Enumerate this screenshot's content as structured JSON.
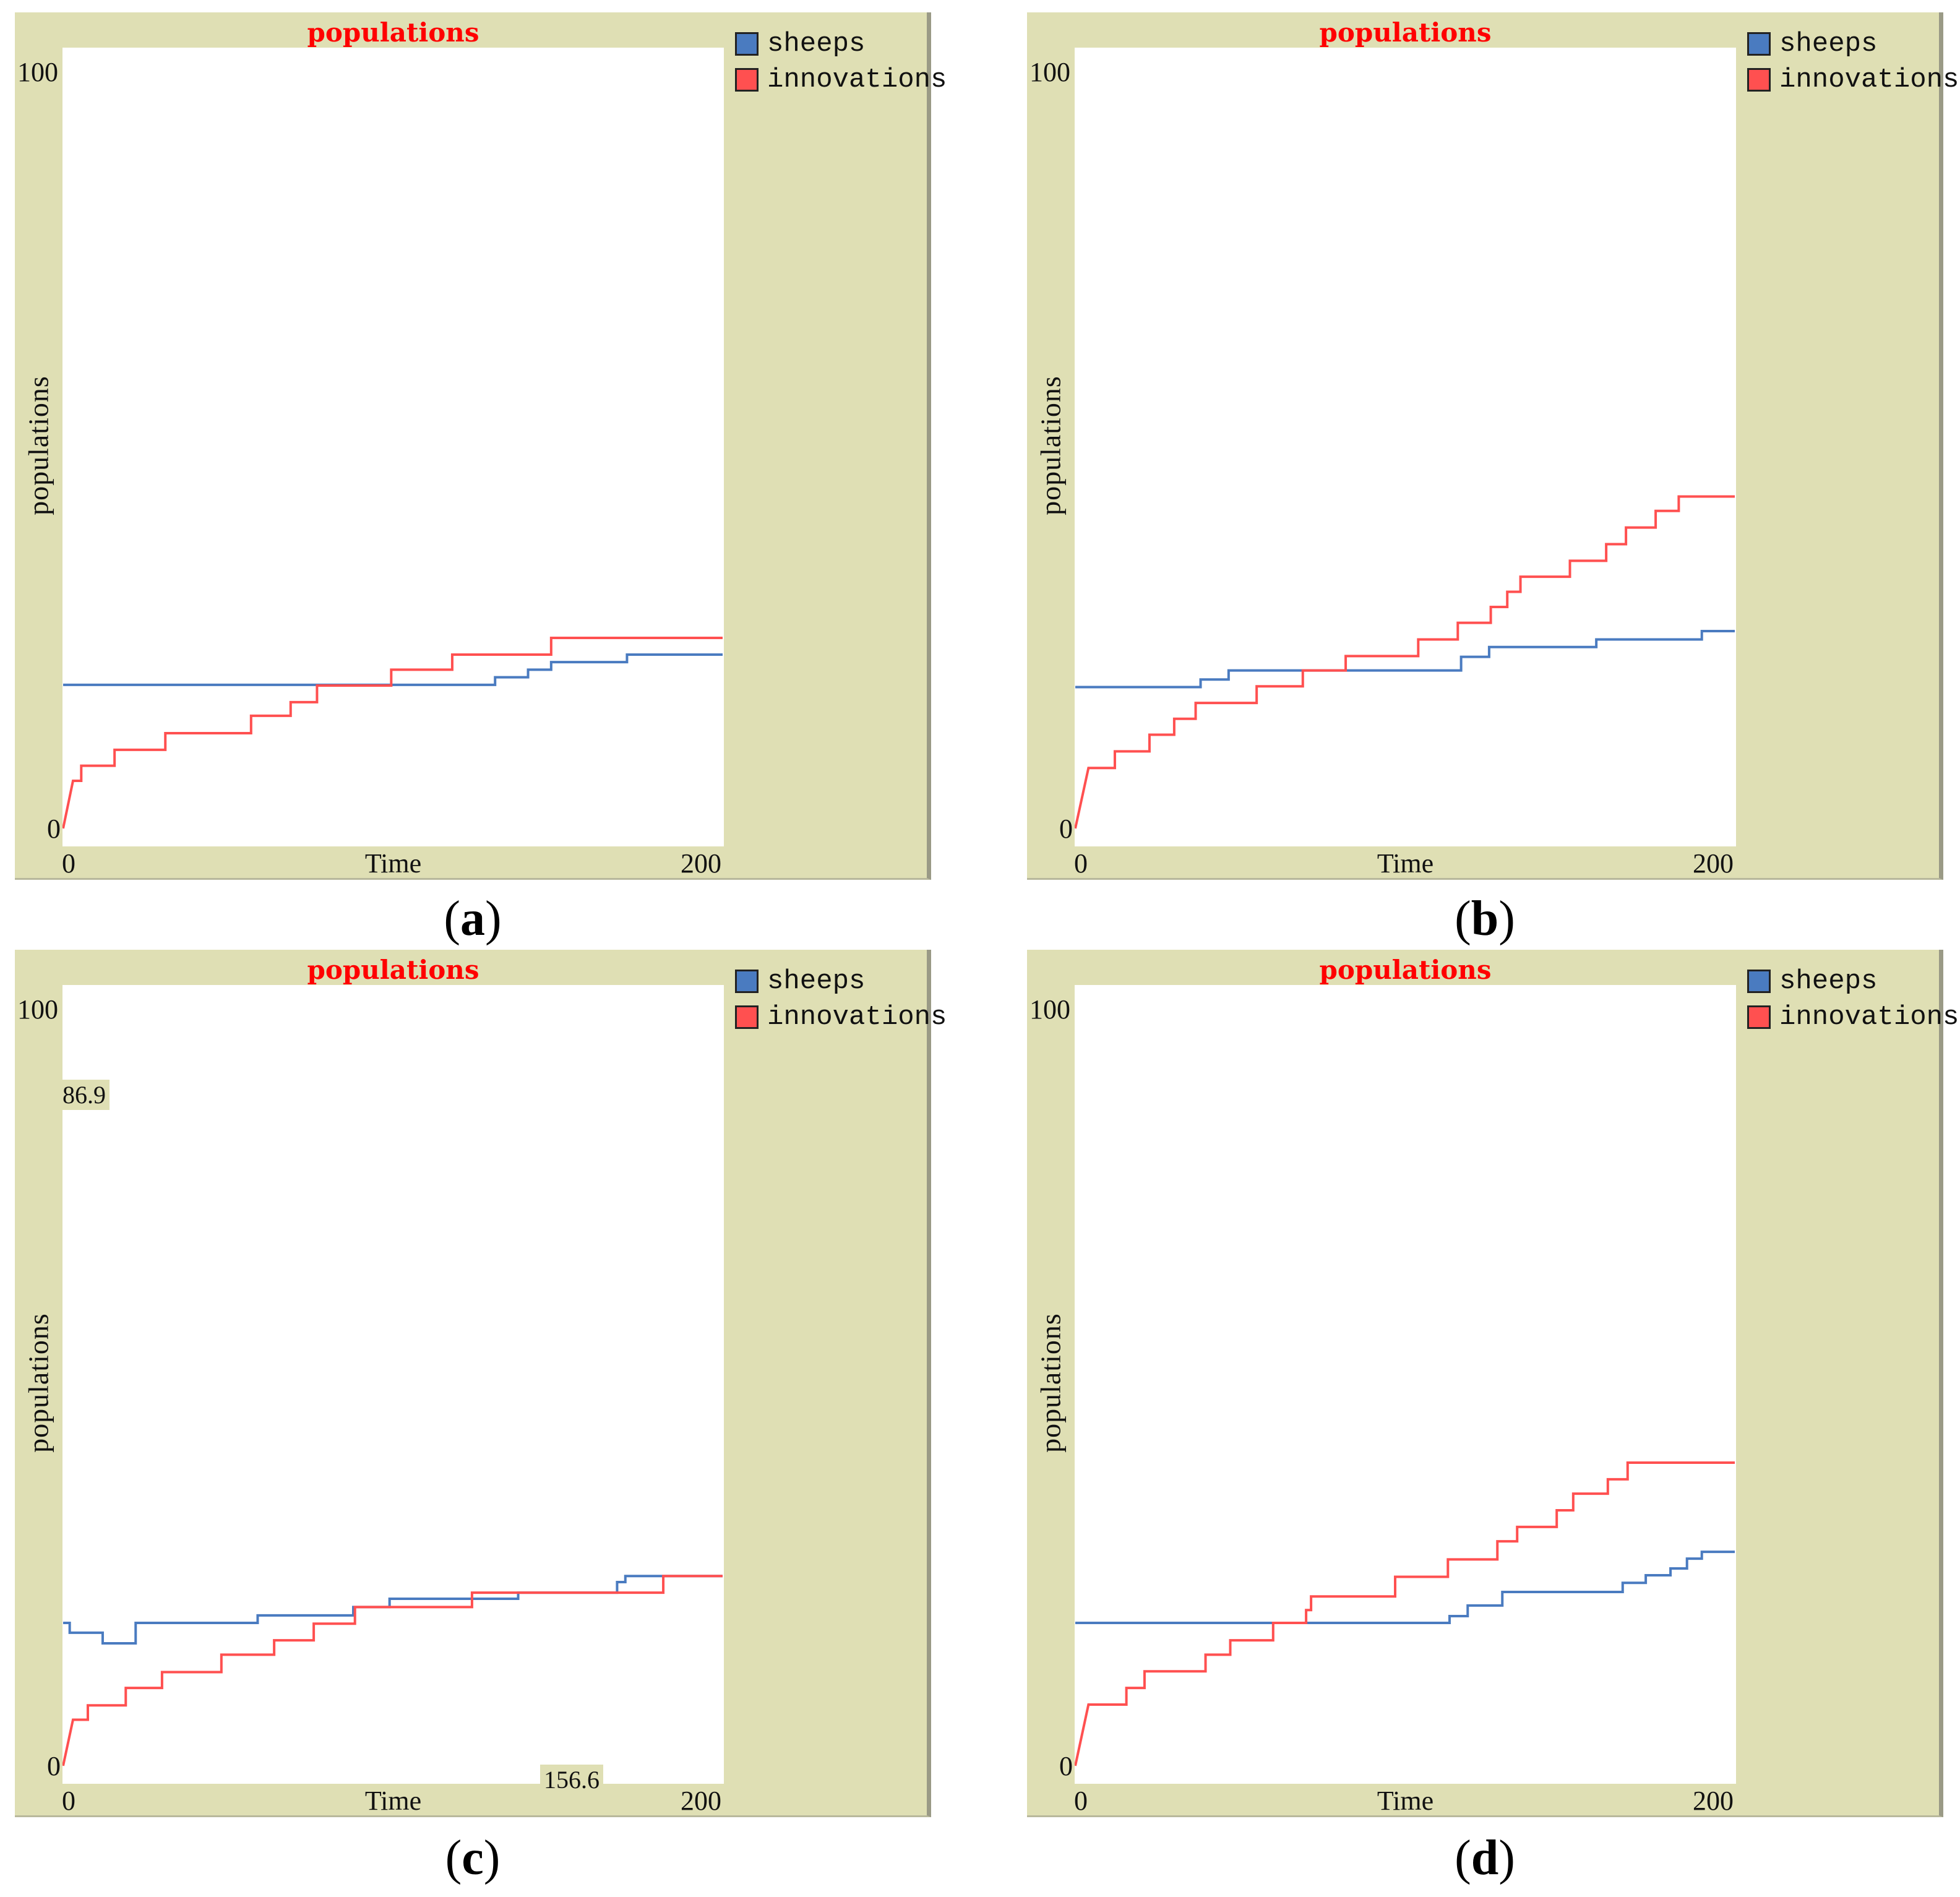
{
  "colors": {
    "background": "#dfdfb4",
    "sheeps": "#4a7bc0",
    "innovations": "#ff5050",
    "title": "#ff0000"
  },
  "chart_data": [
    {
      "type": "line",
      "caption": "a",
      "title": "populations",
      "xlabel": "Time",
      "ylabel": "populations",
      "xlim": [
        0,
        200
      ],
      "ylim": [
        0,
        100
      ],
      "xticks": [
        "0",
        "200"
      ],
      "yticks": [
        "0",
        "100"
      ],
      "legend": "top-right",
      "annotations": [],
      "series": [
        {
          "name": "sheeps",
          "points": [
            [
              0,
              19
            ],
            [
              131,
              20
            ],
            [
              141,
              21
            ],
            [
              148,
              22
            ],
            [
              171,
              23
            ],
            [
              200,
              23
            ]
          ]
        },
        {
          "name": "innovations",
          "points": [
            [
              0,
              0
            ],
            [
              3,
              6.3
            ],
            [
              5.5,
              8.3
            ],
            [
              15.6,
              10.4
            ],
            [
              31,
              12.6
            ],
            [
              57,
              14.9
            ],
            [
              69,
              16.7
            ],
            [
              77,
              18.9
            ],
            [
              99.5,
              21
            ],
            [
              118,
              23
            ],
            [
              148,
              25.2
            ],
            [
              200,
              25.2
            ]
          ]
        }
      ]
    },
    {
      "type": "line",
      "caption": "b",
      "title": "populations",
      "xlabel": "Time",
      "ylabel": "populations",
      "xlim": [
        0,
        200
      ],
      "ylim": [
        0,
        100
      ],
      "xticks": [
        "0",
        "200"
      ],
      "yticks": [
        "0",
        "100"
      ],
      "legend": "top-right",
      "annotations": [],
      "series": [
        {
          "name": "sheeps",
          "points": [
            [
              0,
              18.7
            ],
            [
              38,
              19.7
            ],
            [
              46.5,
              20.9
            ],
            [
              117,
              22.7
            ],
            [
              125.5,
              24
            ],
            [
              158,
              25
            ],
            [
              190,
              26.1
            ],
            [
              200,
              26.1
            ]
          ]
        },
        {
          "name": "innovations",
          "points": [
            [
              0,
              0
            ],
            [
              4,
              8
            ],
            [
              12,
              10.2
            ],
            [
              22.5,
              12.4
            ],
            [
              30,
              14.5
            ],
            [
              36.5,
              16.6
            ],
            [
              55,
              18.8
            ],
            [
              69,
              20.9
            ],
            [
              82,
              22.8
            ],
            [
              104,
              25
            ],
            [
              116,
              27.2
            ],
            [
              126,
              29.3
            ],
            [
              131,
              31.3
            ],
            [
              135,
              33.3
            ],
            [
              150,
              35.4
            ],
            [
              161,
              37.6
            ],
            [
              167,
              39.8
            ],
            [
              176,
              42
            ],
            [
              183,
              43.9
            ],
            [
              200,
              43.9
            ]
          ]
        }
      ]
    },
    {
      "type": "line",
      "caption": "c",
      "title": "populations",
      "xlabel": "Time",
      "ylabel": "populations",
      "xlim": [
        0,
        200
      ],
      "ylim": [
        0,
        100
      ],
      "xticks": [
        "0",
        "200"
      ],
      "yticks": [
        "0",
        "100"
      ],
      "legend": "top-right",
      "annotations": [
        "86.9",
        "156.6"
      ],
      "series": [
        {
          "name": "sheeps",
          "points": [
            [
              0,
              18.9
            ],
            [
              2,
              17.6
            ],
            [
              12,
              16.2
            ],
            [
              22,
              18.9
            ],
            [
              59,
              19.9
            ],
            [
              88,
              21
            ],
            [
              99,
              22.1
            ],
            [
              138,
              22.9
            ],
            [
              168,
              24.3
            ],
            [
              170.5,
              25.1
            ],
            [
              200,
              25.1
            ]
          ]
        },
        {
          "name": "innovations",
          "points": [
            [
              0,
              0
            ],
            [
              3,
              6.1
            ],
            [
              7.5,
              8
            ],
            [
              19,
              10.3
            ],
            [
              30,
              12.4
            ],
            [
              48,
              14.7
            ],
            [
              64,
              16.6
            ],
            [
              76,
              18.8
            ],
            [
              88.5,
              21
            ],
            [
              124,
              22.9
            ],
            [
              182,
              25.1
            ],
            [
              200,
              25.1
            ]
          ]
        }
      ]
    },
    {
      "type": "line",
      "caption": "d",
      "title": "populations",
      "xlabel": "Time",
      "ylabel": "populations",
      "xlim": [
        0,
        200
      ],
      "ylim": [
        0,
        100
      ],
      "xticks": [
        "0",
        "200"
      ],
      "yticks": [
        "0",
        "100"
      ],
      "legend": "top-right",
      "annotations": [],
      "series": [
        {
          "name": "sheeps",
          "points": [
            [
              0,
              18.9
            ],
            [
              113.5,
              19.8
            ],
            [
              119,
              21.2
            ],
            [
              129.5,
              23
            ],
            [
              166,
              24.2
            ],
            [
              173,
              25.2
            ],
            [
              180.5,
              26.1
            ],
            [
              185.5,
              27.4
            ],
            [
              190,
              28.3
            ],
            [
              200,
              28.3
            ]
          ]
        },
        {
          "name": "innovations",
          "points": [
            [
              0,
              0
            ],
            [
              4,
              8.1
            ],
            [
              15.5,
              10.3
            ],
            [
              21,
              12.5
            ],
            [
              39.5,
              14.7
            ],
            [
              47,
              16.6
            ],
            [
              60,
              18.9
            ],
            [
              70,
              20.6
            ],
            [
              71.5,
              22.4
            ],
            [
              97,
              25
            ],
            [
              113,
              27.3
            ],
            [
              128,
              29.7
            ],
            [
              134,
              31.6
            ],
            [
              146,
              33.8
            ],
            [
              151,
              36
            ],
            [
              161.5,
              37.9
            ],
            [
              167.5,
              40.1
            ],
            [
              200,
              40.1
            ]
          ]
        }
      ]
    }
  ]
}
